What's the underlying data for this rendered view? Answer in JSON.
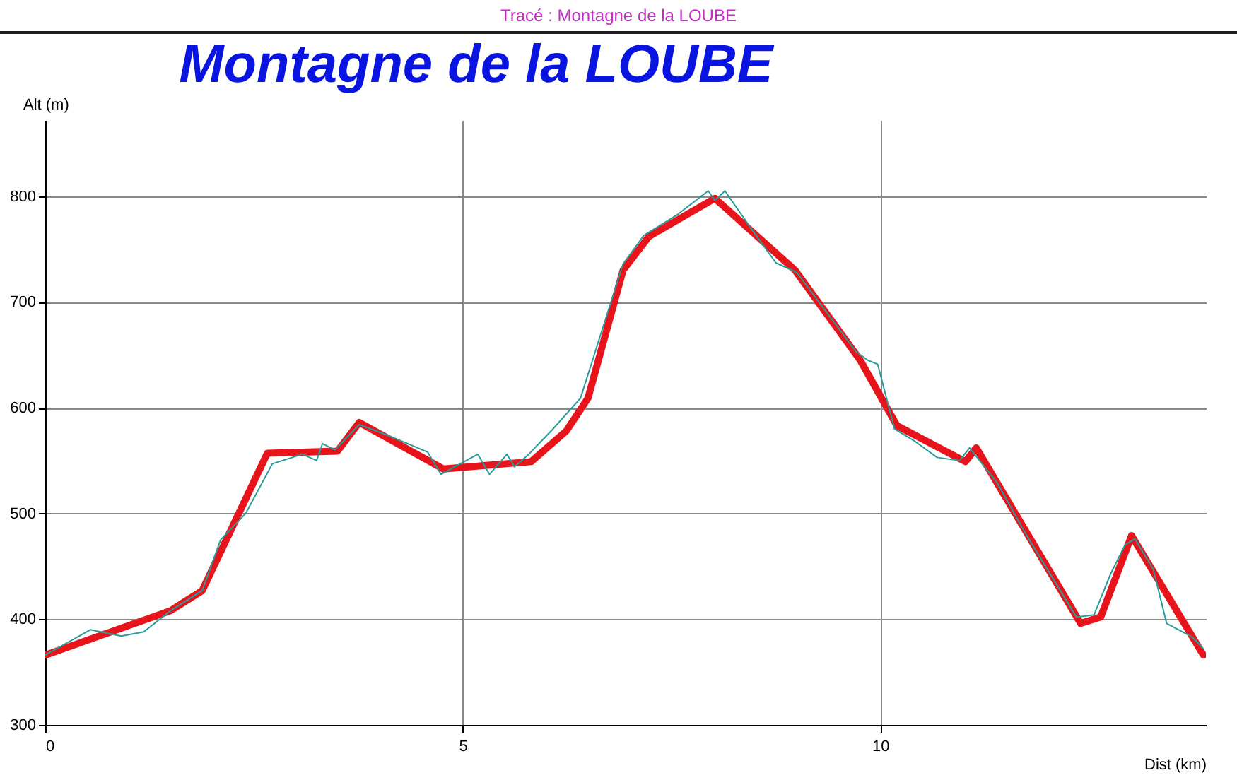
{
  "chart_data": {
    "type": "line",
    "title": "Montagne de la LOUBE",
    "subtitle": "Tracé : Montagne de la LOUBE",
    "xlabel": "Dist (km)",
    "ylabel": "Alt (m)",
    "xlim": [
      0,
      13.9
    ],
    "ylim": [
      300,
      872
    ],
    "xticks": [
      0,
      5,
      10
    ],
    "yticks": [
      300,
      400,
      500,
      600,
      700,
      800
    ],
    "grid": true,
    "series": [
      {
        "color": "#2a9a9a",
        "x": [
          0,
          0.54,
          0.91,
          1.18,
          1.5,
          1.88,
          2.1,
          2.4,
          2.72,
          3.08,
          3.25,
          3.32,
          3.47,
          3.76,
          4.1,
          4.58,
          4.74,
          5.18,
          5.32,
          5.53,
          5.62,
          5.79,
          6.07,
          6.41,
          6.92,
          7.17,
          7.56,
          7.94,
          8.02,
          8.14,
          8.44,
          8.75,
          9.0,
          9.71,
          9.85,
          9.97,
          10.17,
          10.42,
          10.68,
          10.95,
          11.07,
          11.4,
          11.74,
          12.35,
          12.56,
          12.76,
          12.93,
          13.05,
          13.27,
          13.43,
          13.74,
          13.87
        ],
        "values": [
          366,
          390,
          384,
          388,
          408,
          427,
          475,
          500,
          547,
          556,
          550,
          566,
          560,
          584,
          574,
          558,
          537,
          556,
          537,
          556,
          544,
          556,
          579,
          609,
          736,
          763,
          782,
          805,
          796,
          805,
          771,
          737,
          728,
          653,
          645,
          641,
          580,
          568,
          553,
          550,
          562,
          529,
          481,
          402,
          404,
          443,
          470,
          476,
          447,
          396,
          383,
          372
        ]
      },
      {
        "color": "#e8141c",
        "x": [
          0,
          1.5,
          1.88,
          2.66,
          3.5,
          3.76,
          4.77,
          5.82,
          6.24,
          6.5,
          6.92,
          7.23,
          8.02,
          8.98,
          9.76,
          10.2,
          11.02,
          11.15,
          12.4,
          12.64,
          13.01,
          13.87
        ],
        "values": [
          366,
          408,
          427,
          557,
          559,
          586,
          542,
          549,
          578,
          609,
          730,
          762,
          798,
          730,
          645,
          583,
          549,
          562,
          396,
          402,
          479,
          366
        ]
      }
    ]
  }
}
